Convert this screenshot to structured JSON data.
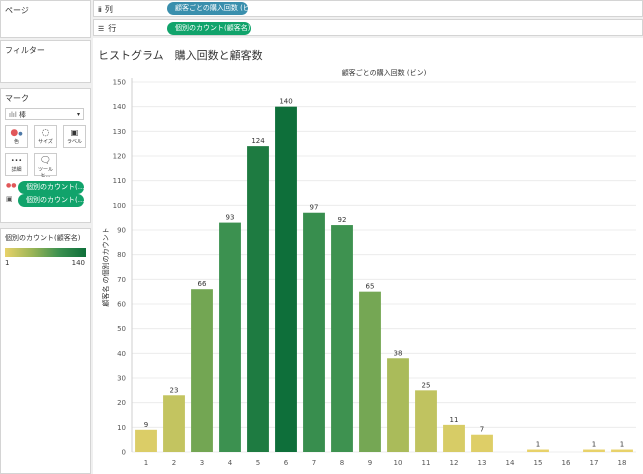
{
  "pages_panel": {
    "title": "ページ"
  },
  "filters_panel": {
    "title": "フィルター"
  },
  "marks_panel": {
    "title": "マーク",
    "mark_type": "棒",
    "buttons": {
      "color": "色",
      "size": "サイズ",
      "label": "ラベル",
      "detail": "詳細",
      "tooltip": "ツールヒ..."
    },
    "pills": [
      "個別のカウント(...",
      "個別のカウント(..."
    ]
  },
  "legend": {
    "title": "個別のカウント(顧客名)",
    "min_label": "1",
    "max_label": "140",
    "color_low": "#e8d26a",
    "color_high": "#0e6f3a"
  },
  "shelves": {
    "columns_label": "列",
    "rows_label": "行",
    "columns_pill": "顧客ごとの購入回数 (ビ...",
    "rows_pill": "個別のカウント(顧客名)"
  },
  "icons": {
    "columns": "columns-icon",
    "rows": "rows-icon",
    "bar_mark": "bar-chart-icon",
    "dropdown": "chevron-down-icon"
  },
  "sheet": {
    "title": "ヒストグラム　購入回数と顧客数"
  },
  "chart_data": {
    "type": "bar",
    "title": "顧客ごとの購入回数 (ビン)",
    "xlabel": "",
    "ylabel": "顧客名 の個別のカウント",
    "categories": [
      "1",
      "2",
      "3",
      "4",
      "5",
      "6",
      "7",
      "8",
      "9",
      "10",
      "11",
      "12",
      "13",
      "14",
      "15",
      "16",
      "17",
      "18"
    ],
    "values": [
      9,
      23,
      66,
      93,
      124,
      140,
      97,
      92,
      65,
      38,
      25,
      11,
      7,
      null,
      1,
      null,
      1,
      1
    ],
    "ylim": [
      0,
      150
    ],
    "yticks": [
      0,
      10,
      20,
      30,
      40,
      50,
      60,
      70,
      80,
      90,
      100,
      110,
      120,
      130,
      140,
      150
    ],
    "grid": true,
    "legend": "left-panel"
  }
}
